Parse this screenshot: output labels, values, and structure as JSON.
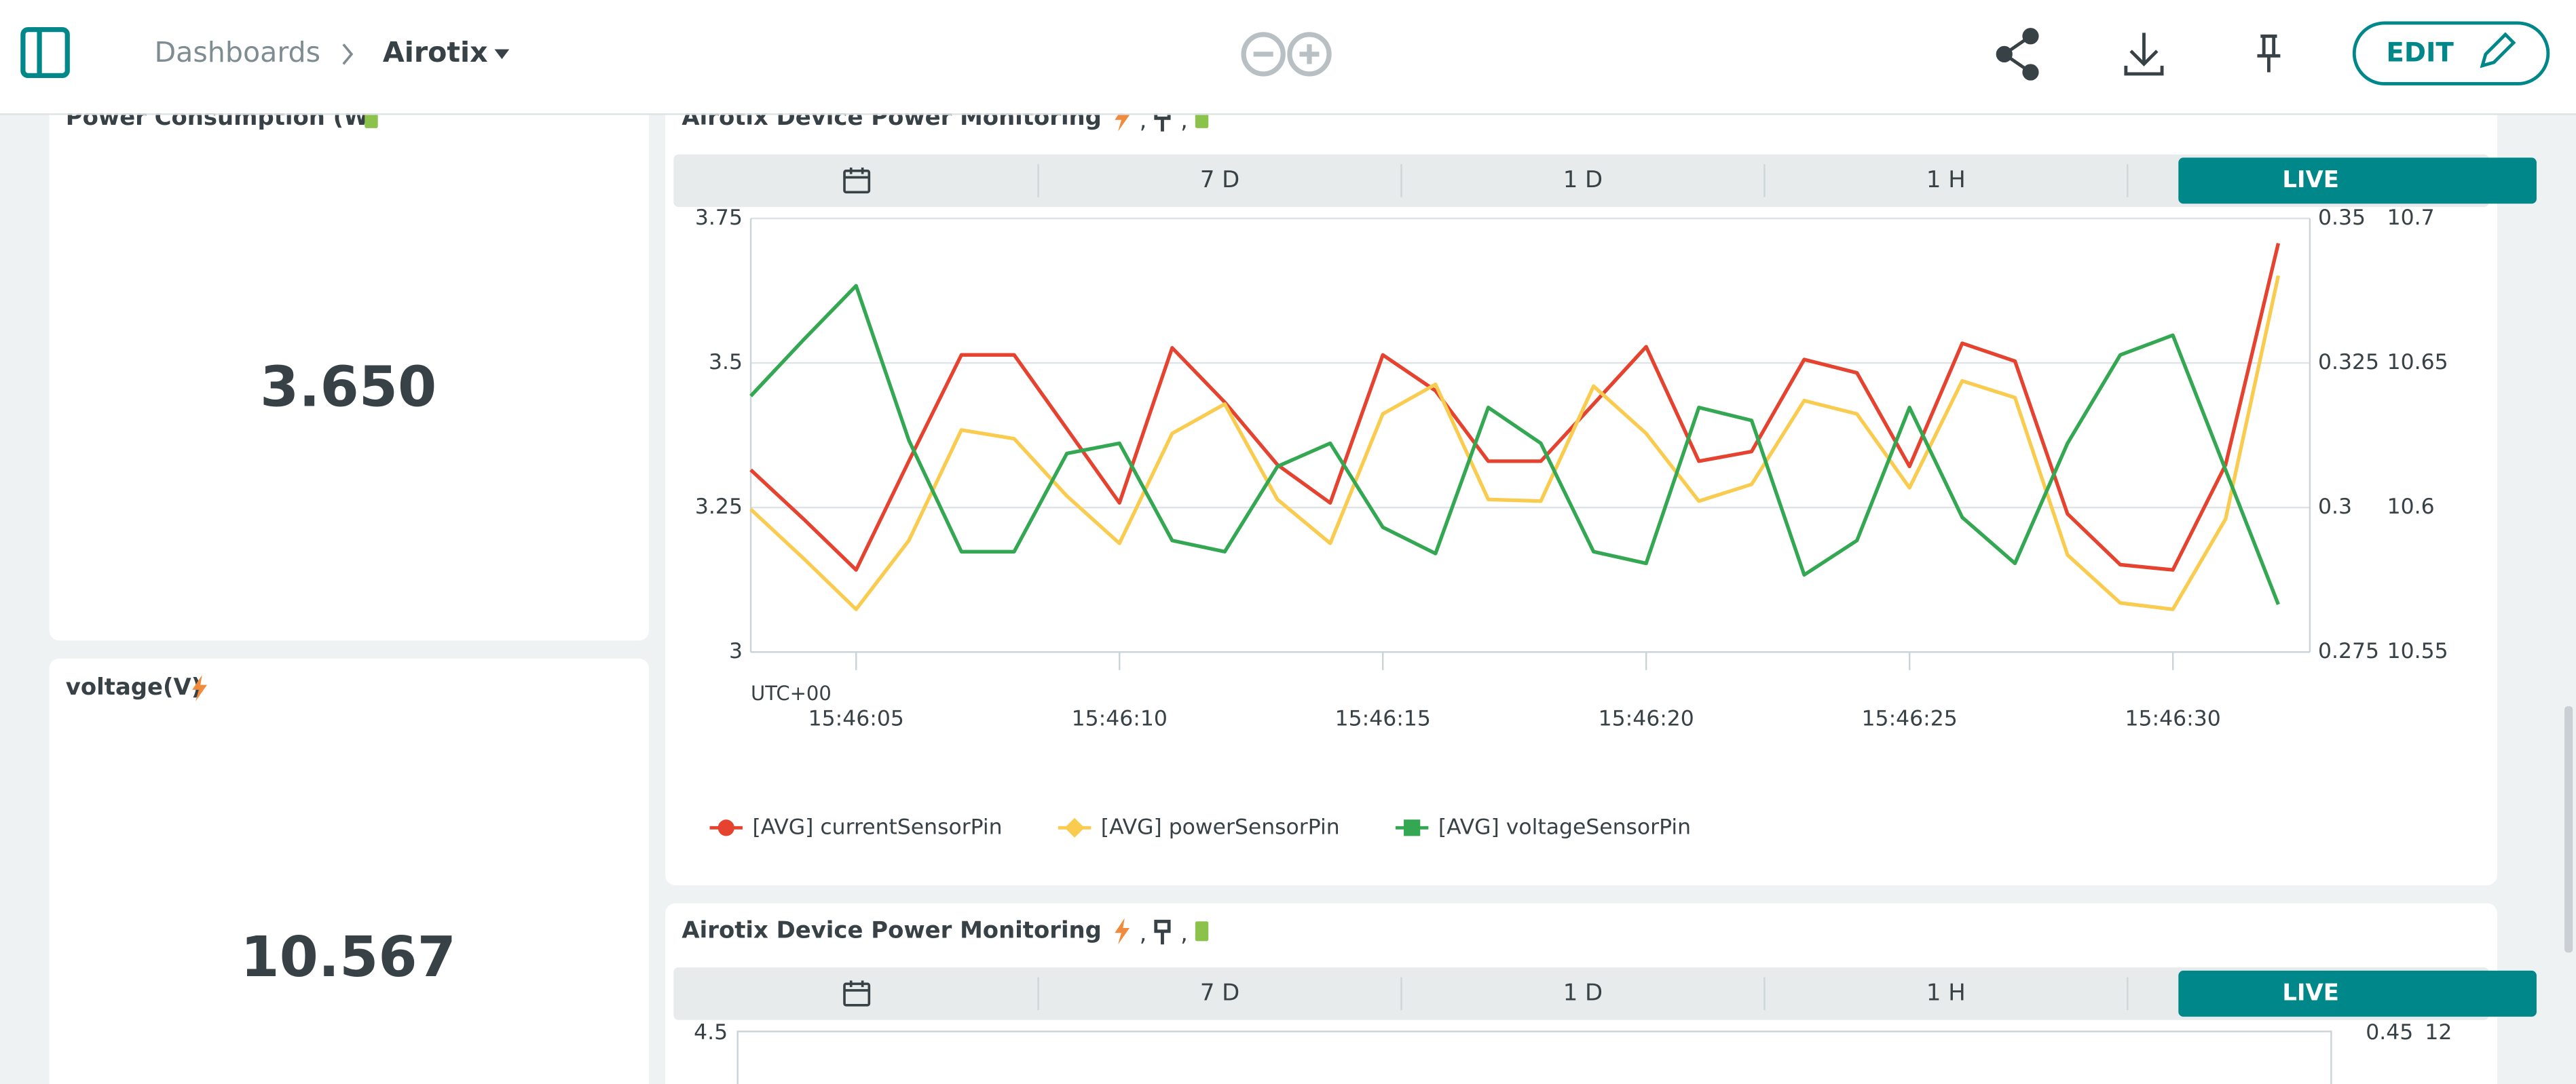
{
  "header": {
    "breadcrumb": "Dashboards",
    "dashboard": "Airotix",
    "edit": "EDIT"
  },
  "widgets": [
    {
      "title": "Power Consumption (W)",
      "value": "3.650"
    },
    {
      "title": "voltage(V)",
      "value": "10.567"
    }
  ],
  "chart_data": [
    {
      "type": "line",
      "title": "Airotix Device Power Monitoring",
      "title_separators": [
        ",",
        ","
      ],
      "range_buttons": [
        "7 D",
        "1 D",
        "1 H",
        "LIVE"
      ],
      "timezone": "UTC+00",
      "x": [
        "15:46:03",
        "15:46:04",
        "15:46:05",
        "15:46:06",
        "15:46:07",
        "15:46:08",
        "15:46:09",
        "15:46:10",
        "15:46:11",
        "15:46:12",
        "15:46:13",
        "15:46:14",
        "15:46:15",
        "15:46:16",
        "15:46:17",
        "15:46:18",
        "15:46:19",
        "15:46:20",
        "15:46:21",
        "15:46:22",
        "15:46:23",
        "15:46:24",
        "15:46:25",
        "15:46:26",
        "15:46:27",
        "15:46:28",
        "15:46:29",
        "15:46:30",
        "15:46:31",
        "15:46:32"
      ],
      "xlim": [
        "15:46:03",
        "15:46:32.6"
      ],
      "xticks": [
        "15:46:05",
        "15:46:10",
        "15:46:15",
        "15:46:20",
        "15:46:25",
        "15:46:30"
      ],
      "ylim": [
        3,
        3.75
      ],
      "yticks": [
        3,
        3.25,
        3.5,
        3.75
      ],
      "y2lim": [
        0.275,
        0.35
      ],
      "y2ticks": [
        0.275,
        0.3,
        0.325,
        0.35
      ],
      "y3lim": [
        10.55,
        10.7
      ],
      "y3ticks": [
        10.55,
        10.6,
        10.65,
        10.7
      ],
      "grid": true,
      "series": [
        {
          "name": "[AVG] currentSensorPin",
          "color": "#e5432f",
          "marker": "circle",
          "axis": "y2",
          "values": [
            0.3065,
            0.298,
            0.2892,
            0.308,
            0.3264,
            0.3264,
            0.3136,
            0.3008,
            0.3276,
            0.3182,
            0.3074,
            0.3008,
            0.3264,
            0.3202,
            0.308,
            0.308,
            0.3179,
            0.3278,
            0.308,
            0.3097,
            0.3256,
            0.3233,
            0.3071,
            0.3284,
            0.3253,
            0.2989,
            0.2901,
            0.2892,
            0.3074,
            0.3457
          ]
        },
        {
          "name": "[AVG] powerSensorPin",
          "color": "#f9cc4f",
          "marker": "diamond",
          "axis": "y",
          "values": [
            3.247,
            3.162,
            3.074,
            3.193,
            3.384,
            3.369,
            3.27,
            3.188,
            3.378,
            3.429,
            3.264,
            3.188,
            3.412,
            3.463,
            3.264,
            3.261,
            3.46,
            3.378,
            3.261,
            3.29,
            3.435,
            3.412,
            3.284,
            3.469,
            3.44,
            3.168,
            3.085,
            3.074,
            3.23,
            3.651
          ]
        },
        {
          "name": "[AVG] voltageSensorPin",
          "color": "#33a752",
          "marker": "square",
          "axis": "y3",
          "values": [
            10.6386,
            10.658,
            10.6767,
            10.6233,
            10.5847,
            10.5847,
            10.6187,
            10.6222,
            10.5886,
            10.5847,
            10.6142,
            10.6222,
            10.5932,
            10.5841,
            10.6346,
            10.6222,
            10.5847,
            10.5807,
            10.6346,
            10.6301,
            10.5767,
            10.5886,
            10.6346,
            10.5966,
            10.5807,
            10.6222,
            10.6528,
            10.6596,
            10.613,
            10.5665
          ]
        }
      ]
    },
    {
      "type": "line",
      "title": "Airotix Device Power Monitoring",
      "title_separators": [
        ",",
        ","
      ],
      "range_buttons": [
        "7 D",
        "1 D",
        "1 H",
        "LIVE"
      ],
      "yticks": [
        4.5
      ],
      "y2ticks": [
        0.45
      ],
      "y3ticks": [
        12
      ]
    }
  ]
}
